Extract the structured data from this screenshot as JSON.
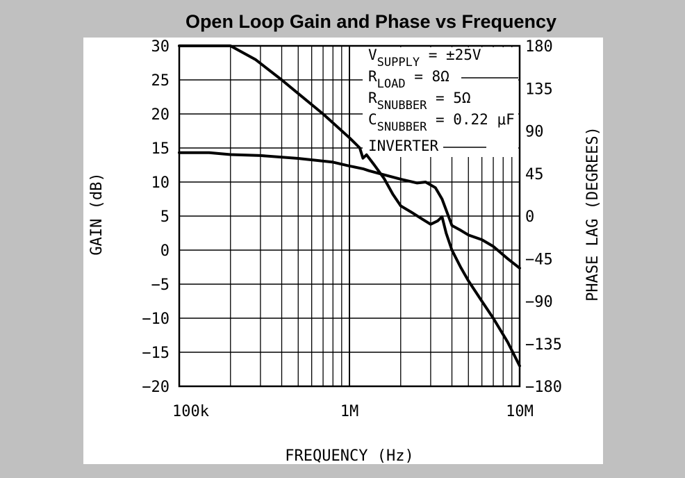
{
  "chart_data": {
    "type": "line",
    "title": "Open Loop Gain and Phase vs Frequency",
    "xlabel": "FREQUENCY (Hz)",
    "ylabel_left": "GAIN (dB)",
    "ylabel_right": "PHASE LAG (DEGREES)",
    "x_scale": "log",
    "xlim": [
      100000,
      10000000
    ],
    "x_ticks": [
      100000,
      1000000,
      10000000
    ],
    "x_tick_labels": [
      "100k",
      "1M",
      "10M"
    ],
    "ylim_left": [
      -20,
      30
    ],
    "y_left_ticks": [
      30,
      25,
      20,
      15,
      10,
      5,
      0,
      -5,
      -10,
      -15,
      -20
    ],
    "y_left_tick_labels": [
      "30",
      "25",
      "20",
      "15",
      "10",
      "5",
      "0",
      "−5",
      "−10",
      "−15",
      "−20"
    ],
    "ylim_right": [
      -180,
      180
    ],
    "y_right_ticks": [
      180,
      135,
      90,
      45,
      0,
      -45,
      -90,
      -135,
      -180
    ],
    "y_right_tick_labels": [
      "180",
      "135",
      "90",
      "45",
      "0",
      "−45",
      "−90",
      "−135",
      "−180"
    ],
    "grid": true,
    "line_color": "#000000",
    "series": [
      {
        "axis": "left",
        "points": [
          [
            100000,
            30
          ],
          [
            200000,
            30
          ],
          [
            280000,
            28
          ],
          [
            400000,
            25
          ],
          [
            500000,
            23
          ],
          [
            700000,
            20
          ],
          [
            1000000,
            16.5
          ],
          [
            1150000,
            15
          ],
          [
            1200000,
            13.5
          ],
          [
            1260000,
            14
          ],
          [
            1400000,
            12.5
          ],
          [
            1600000,
            10.5
          ],
          [
            1800000,
            8.2
          ],
          [
            2000000,
            6.5
          ],
          [
            2300000,
            5.6
          ],
          [
            2700000,
            4.5
          ],
          [
            3000000,
            3.8
          ],
          [
            3300000,
            4.3
          ],
          [
            3500000,
            4.9
          ],
          [
            3700000,
            2.5
          ],
          [
            4000000,
            0
          ],
          [
            4500000,
            -2.5
          ],
          [
            5000000,
            -4.5
          ],
          [
            6000000,
            -7.5
          ],
          [
            7000000,
            -10
          ],
          [
            8500000,
            -13.5
          ],
          [
            10000000,
            -17
          ]
        ]
      },
      {
        "axis": "right",
        "points": [
          [
            100000,
            67
          ],
          [
            150000,
            67
          ],
          [
            200000,
            65
          ],
          [
            300000,
            64
          ],
          [
            500000,
            61
          ],
          [
            800000,
            57
          ],
          [
            1000000,
            53
          ],
          [
            1200000,
            50
          ],
          [
            1300000,
            48
          ],
          [
            1500000,
            45
          ],
          [
            2000000,
            39
          ],
          [
            2500000,
            35
          ],
          [
            2800000,
            36
          ],
          [
            3200000,
            30
          ],
          [
            3500000,
            18
          ],
          [
            4000000,
            -10
          ],
          [
            4500000,
            -15
          ],
          [
            5000000,
            -20
          ],
          [
            6000000,
            -25
          ],
          [
            7000000,
            -32
          ],
          [
            8500000,
            -45
          ],
          [
            10000000,
            -55
          ]
        ]
      }
    ],
    "annotations": [
      {
        "main": "V",
        "sub": "SUPPLY",
        "rest": " = ±25V"
      },
      {
        "main": "R",
        "sub": "LOAD",
        "rest": " = 8Ω"
      },
      {
        "main": "R",
        "sub": "SNUBBER",
        "rest": " = 5Ω"
      },
      {
        "main": "C",
        "sub": "SNUBBER",
        "rest": " = 0.22 μF"
      },
      {
        "main": "INVERTER",
        "sub": "",
        "rest": ""
      }
    ]
  }
}
